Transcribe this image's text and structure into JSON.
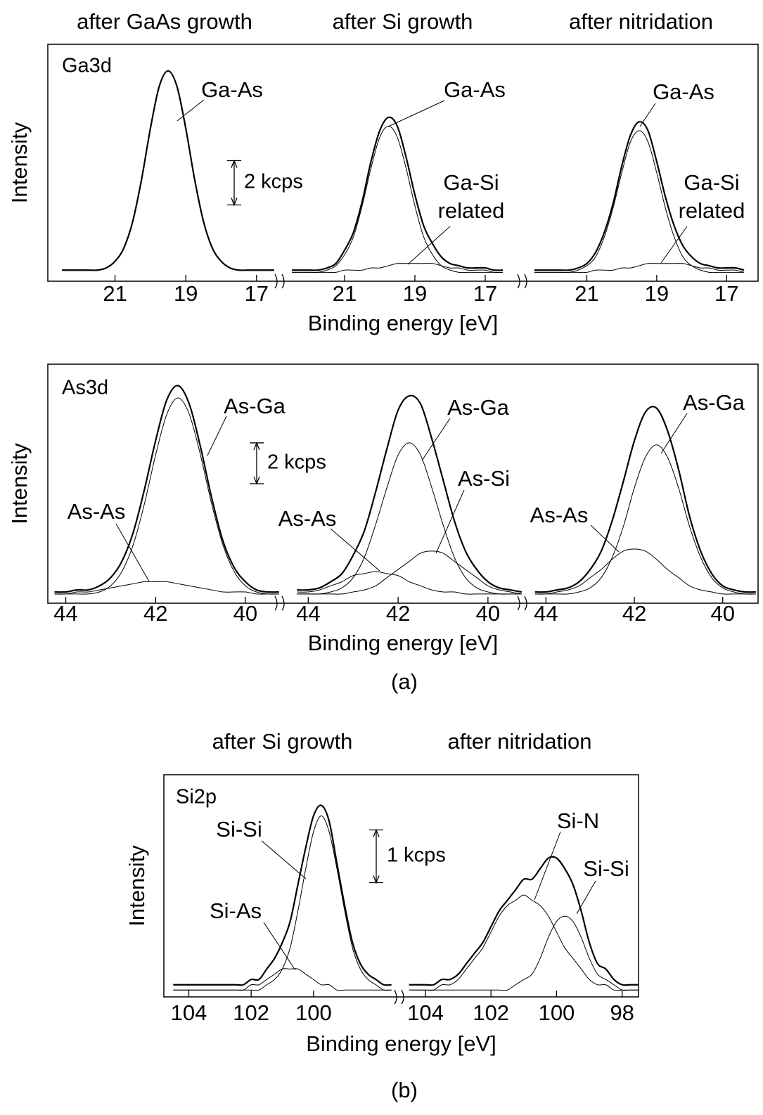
{
  "figure_labels": [
    "(a)",
    "(b)"
  ],
  "chart_data": [
    {
      "type": "line",
      "label": "Ga3d",
      "ylabel": "Intensity",
      "xlabel": "Binding energy [eV]",
      "color": "#000000",
      "ylim": [
        -0.4,
        10.3
      ],
      "scale_bar": {
        "value": 2,
        "label": "2 kcps"
      },
      "x": [
        22.5,
        22.25,
        22,
        21.75,
        21.5,
        21.25,
        21,
        20.75,
        20.5,
        20.25,
        20,
        19.75,
        19.5,
        19.25,
        19,
        18.75,
        18.5,
        18.25,
        18,
        17.75,
        17.5,
        17.25,
        17,
        16.75,
        16.5
      ],
      "segments": [
        {
          "title": "after GaAs growth",
          "xlim": [
            22.9,
            16.3
          ],
          "xticks": [
            21,
            19,
            17
          ],
          "series": [
            {
              "name": "Ga-As",
              "values": [
                0.1,
                0.1,
                0.1,
                0.1,
                0.1,
                0.2,
                0.5,
                1.1,
                2.3,
                4.2,
                6.5,
                8.4,
                9.1,
                8.4,
                6.5,
                4.2,
                2.3,
                1.1,
                0.5,
                0.2,
                0.1,
                0.1,
                0.1,
                0.1,
                0.1
              ]
            }
          ]
        },
        {
          "title": "after Si growth",
          "xlim": [
            22.8,
            15.9
          ],
          "xticks": [
            21,
            19,
            17
          ],
          "series": [
            {
              "values": [
                0.1,
                0.1,
                0.1,
                0.1,
                0.2,
                0.4,
                1.0,
                1.8,
                3.2,
                5.0,
                6.4,
                7.0,
                6.6,
                5.2,
                3.5,
                2.1,
                1.3,
                0.7,
                0.4,
                0.3,
                0.2,
                0.2,
                0.2,
                0.1,
                0.1
              ]
            },
            {
              "name": "Ga-As",
              "values": [
                0,
                0,
                0,
                0,
                0.1,
                0.3,
                0.8,
                1.6,
                3.0,
                4.7,
                6.1,
                6.6,
                6.1,
                4.7,
                3.0,
                1.6,
                0.8,
                0.3,
                0.1,
                0,
                0,
                0,
                0,
                0,
                0
              ]
            },
            {
              "name": "Ga-Si related",
              "wrap": true,
              "values": [
                0,
                0,
                0,
                0,
                0,
                0,
                0.1,
                0.1,
                0.1,
                0.2,
                0.2,
                0.3,
                0.4,
                0.4,
                0.4,
                0.4,
                0.4,
                0.3,
                0.2,
                0.2,
                0.1,
                0.1,
                0.1,
                0,
                0
              ]
            }
          ]
        },
        {
          "title": "after nitridation",
          "xlim": [
            22.8,
            16.1
          ],
          "xticks": [
            21,
            19,
            17
          ],
          "series": [
            {
              "values": [
                0.1,
                0.1,
                0.1,
                0.1,
                0.1,
                0.2,
                0.4,
                0.9,
                1.8,
                3.1,
                4.8,
                6.2,
                6.8,
                6.4,
                5.0,
                3.4,
                2.1,
                1.2,
                0.7,
                0.4,
                0.3,
                0.2,
                0.2,
                0.2,
                0.1
              ]
            },
            {
              "name": "Ga-As",
              "values": [
                0,
                0,
                0,
                0,
                0,
                0.1,
                0.3,
                0.7,
                1.6,
                2.9,
                4.5,
                5.9,
                6.4,
                5.9,
                4.5,
                2.9,
                1.6,
                0.7,
                0.3,
                0.1,
                0,
                0,
                0,
                0,
                0
              ]
            },
            {
              "name": "Ga-Si related",
              "wrap": true,
              "values": [
                0,
                0,
                0,
                0,
                0,
                0,
                0,
                0.1,
                0.1,
                0.1,
                0.2,
                0.2,
                0.3,
                0.4,
                0.4,
                0.4,
                0.4,
                0.4,
                0.3,
                0.2,
                0.2,
                0.1,
                0.1,
                0.1,
                0
              ]
            }
          ]
        }
      ]
    },
    {
      "type": "line",
      "label": "As3d",
      "ylabel": "Intensity",
      "xlabel": "Binding energy [eV]",
      "color": "#000000",
      "ylim": [
        -0.45,
        11.25
      ],
      "scale_bar": {
        "value": 2,
        "label": "2 kcps"
      },
      "x": [
        44.25,
        44,
        43.75,
        43.5,
        43.25,
        43,
        42.75,
        42.5,
        42.25,
        42,
        41.75,
        41.5,
        41.25,
        41,
        40.75,
        40.5,
        40.25,
        40,
        39.75,
        39.5,
        39.25
      ],
      "segments": [
        {
          "xlim": [
            44.4,
            39.2
          ],
          "xticks": [
            44,
            42,
            40
          ],
          "series": [
            {
              "values": [
                0.1,
                0.1,
                0.2,
                0.2,
                0.4,
                0.8,
                1.6,
                3.0,
                5.1,
                7.5,
                9.5,
                10.2,
                9.3,
                7.2,
                4.7,
                2.6,
                1.3,
                0.6,
                0.2,
                0.1,
                0.1
              ]
            },
            {
              "name": "As-Ga",
              "values": [
                0,
                0,
                0,
                0,
                0.1,
                0.4,
                1.1,
                2.4,
                4.4,
                6.8,
                8.8,
                9.6,
                8.8,
                6.8,
                4.4,
                2.4,
                1.1,
                0.4,
                0.1,
                0,
                0
              ]
            },
            {
              "name": "As-As",
              "values": [
                0,
                0,
                0.1,
                0.1,
                0.2,
                0.3,
                0.4,
                0.5,
                0.6,
                0.6,
                0.6,
                0.5,
                0.4,
                0.3,
                0.2,
                0.1,
                0.1,
                0.1,
                0,
                0,
                0
              ]
            }
          ]
        },
        {
          "xlim": [
            44.6,
            39.2
          ],
          "xticks": [
            44,
            42,
            40
          ],
          "series": [
            {
              "values": [
                0.2,
                0.2,
                0.3,
                0.6,
                1.0,
                1.9,
                3.1,
                5.0,
                7.1,
                9.0,
                9.7,
                9.3,
                7.6,
                5.6,
                3.6,
                2.1,
                1.2,
                0.6,
                0.3,
                0.2,
                0.1
              ]
            },
            {
              "name": "As-Ga",
              "values": [
                0,
                0,
                0,
                0.1,
                0.3,
                0.8,
                1.8,
                3.4,
                5.2,
                6.8,
                7.4,
                6.8,
                5.2,
                3.4,
                1.8,
                0.8,
                0.3,
                0.1,
                0,
                0,
                0
              ]
            },
            {
              "name": "As-As",
              "values": [
                0.1,
                0.1,
                0.2,
                0.4,
                0.6,
                0.9,
                1.0,
                1.1,
                1.0,
                0.9,
                0.6,
                0.4,
                0.2,
                0.1,
                0.1,
                0,
                0,
                0,
                0,
                0,
                0
              ]
            },
            {
              "name": "As-Si",
              "values": [
                0,
                0,
                0,
                0,
                0,
                0.1,
                0.2,
                0.4,
                0.8,
                1.2,
                1.6,
                2.0,
                2.1,
                2.0,
                1.6,
                1.2,
                0.8,
                0.4,
                0.2,
                0.1,
                0
              ]
            }
          ]
        },
        {
          "xlim": [
            44.5,
            39.2
          ],
          "xticks": [
            44,
            42,
            40
          ],
          "series": [
            {
              "values": [
                0.1,
                0.1,
                0.2,
                0.3,
                0.6,
                1.2,
                2.1,
                3.6,
                5.5,
                7.5,
                8.9,
                9.1,
                8.0,
                6.1,
                3.8,
                2.1,
                1.0,
                0.4,
                0.2,
                0.1,
                0.1
              ]
            },
            {
              "name": "As-Ga",
              "values": [
                0,
                0,
                0,
                0,
                0.1,
                0.3,
                0.8,
                1.8,
                3.3,
                5.2,
                6.7,
                7.3,
                6.7,
                5.2,
                3.3,
                1.8,
                0.8,
                0.3,
                0.1,
                0,
                0
              ]
            },
            {
              "name": "As-As",
              "values": [
                0,
                0,
                0.1,
                0.2,
                0.4,
                0.8,
                1.2,
                1.7,
                2.1,
                2.2,
                2.1,
                1.7,
                1.2,
                0.8,
                0.4,
                0.2,
                0.1,
                0,
                0,
                0,
                0
              ]
            }
          ]
        }
      ]
    },
    {
      "type": "line",
      "label": "Si2p",
      "ylabel": "Intensity",
      "xlabel": "Binding energy [eV]",
      "color": "#000000",
      "ylim": [
        -0.13,
        4.08
      ],
      "scale_bar": {
        "value": 1,
        "label": "1 kcps"
      },
      "x": [
        104.5,
        104.25,
        104,
        103.75,
        103.5,
        103.25,
        103,
        102.75,
        102.5,
        102.25,
        102,
        101.75,
        101.5,
        101.25,
        101,
        100.75,
        100.5,
        100.25,
        100,
        99.75,
        99.5,
        99.25,
        99,
        98.75,
        98.5,
        98.25,
        98,
        97.75,
        97.5
      ],
      "segments": [
        {
          "title": "after Si growth",
          "xlim": [
            104.8,
            97.2
          ],
          "xticks": [
            104,
            102,
            100
          ],
          "series": [
            {
              "values": [
                0.1,
                0.1,
                0.1,
                0.1,
                0.1,
                0.1,
                0.1,
                0.1,
                0.1,
                0.1,
                0.2,
                0.2,
                0.4,
                0.6,
                0.9,
                1.3,
                2.0,
                2.7,
                3.3,
                3.5,
                3.2,
                2.4,
                1.6,
                0.9,
                0.5,
                0.3,
                0.2,
                0.1,
                0.1
              ]
            },
            {
              "name": "Si-Si",
              "values": [
                0,
                0,
                0,
                0,
                0,
                0,
                0,
                0,
                0,
                0,
                0,
                0,
                0.1,
                0.2,
                0.4,
                0.8,
                1.5,
                2.3,
                3.0,
                3.3,
                3.0,
                2.3,
                1.5,
                0.8,
                0.4,
                0.2,
                0.1,
                0,
                0
              ]
            },
            {
              "name": "Si-As",
              "values": [
                0,
                0,
                0,
                0,
                0,
                0,
                0,
                0,
                0,
                0,
                0.1,
                0.1,
                0.2,
                0.3,
                0.4,
                0.4,
                0.4,
                0.3,
                0.2,
                0.1,
                0.1,
                0,
                0,
                0,
                0,
                0,
                0,
                0,
                0
              ]
            }
          ]
        },
        {
          "title": "after nitridation",
          "xlim": [
            104.75,
            97.5
          ],
          "xticks": [
            104,
            102,
            100,
            98
          ],
          "series": [
            {
              "values": [
                0.1,
                0.1,
                0.1,
                0.1,
                0.2,
                0.2,
                0.3,
                0.5,
                0.7,
                0.9,
                1.2,
                1.5,
                1.7,
                1.9,
                2.1,
                2.1,
                2.3,
                2.5,
                2.5,
                2.3,
                2.0,
                1.5,
                0.9,
                0.5,
                0.4,
                0.2,
                0.1,
                0.1,
                0.1
              ]
            },
            {
              "name": "Si-N",
              "values": [
                0,
                0,
                0,
                0,
                0.1,
                0.1,
                0.2,
                0.4,
                0.6,
                0.8,
                1.1,
                1.4,
                1.6,
                1.7,
                1.8,
                1.7,
                1.6,
                1.4,
                1.1,
                0.8,
                0.6,
                0.4,
                0.2,
                0.1,
                0.1,
                0,
                0,
                0,
                0
              ]
            },
            {
              "name": "Si-Si",
              "values": [
                0,
                0,
                0,
                0,
                0,
                0,
                0,
                0,
                0,
                0,
                0,
                0,
                0,
                0.1,
                0.2,
                0.3,
                0.6,
                1.0,
                1.3,
                1.4,
                1.3,
                1.0,
                0.6,
                0.3,
                0.2,
                0.1,
                0,
                0,
                0
              ]
            }
          ]
        }
      ]
    }
  ]
}
